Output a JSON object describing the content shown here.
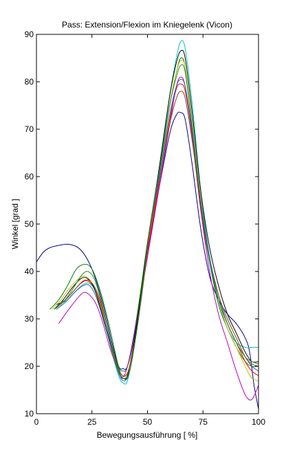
{
  "chart_data": {
    "type": "line",
    "title": "Pass: Extension/Flexion im Kniegelenk (Vicon)",
    "xlabel": "Bewegungsausführung [ %]",
    "ylabel": "Winkel [grad ]",
    "xlim": [
      0,
      100
    ],
    "ylim": [
      10,
      90
    ],
    "xticks": [
      "0",
      "25",
      "50",
      "75",
      "100"
    ],
    "yticks": [
      "10",
      "20",
      "30",
      "40",
      "50",
      "60",
      "70",
      "80",
      "90"
    ],
    "grid": false,
    "legend": "none",
    "series": [
      {
        "color": "#00008b",
        "points": [
          [
            0,
            42
          ],
          [
            3,
            44
          ],
          [
            6,
            45
          ],
          [
            10,
            45.5
          ],
          [
            15,
            45.7
          ],
          [
            20,
            44.5
          ],
          [
            25,
            40.5
          ],
          [
            30,
            33
          ],
          [
            34,
            25
          ],
          [
            37,
            20
          ],
          [
            39,
            19.5
          ],
          [
            41,
            20
          ],
          [
            44,
            26
          ],
          [
            47,
            35
          ],
          [
            50,
            44
          ],
          [
            55,
            57
          ],
          [
            60,
            69
          ],
          [
            63,
            73
          ],
          [
            65,
            73.5
          ],
          [
            67,
            72
          ],
          [
            70,
            63
          ],
          [
            74,
            49
          ],
          [
            78,
            39
          ],
          [
            82,
            34
          ],
          [
            86,
            31
          ],
          [
            90,
            29
          ],
          [
            94,
            26
          ],
          [
            96,
            23
          ],
          [
            98,
            16
          ],
          [
            100,
            11
          ]
        ]
      },
      {
        "color": "#008000",
        "points": [
          [
            6,
            32
          ],
          [
            10,
            34
          ],
          [
            14,
            37
          ],
          [
            18,
            40.5
          ],
          [
            22,
            41.5
          ],
          [
            25,
            40.5
          ],
          [
            28,
            37
          ],
          [
            31,
            32
          ],
          [
            34,
            26
          ],
          [
            37,
            20
          ],
          [
            39,
            19
          ],
          [
            41,
            20
          ],
          [
            44,
            27
          ],
          [
            47,
            36
          ],
          [
            50,
            46
          ],
          [
            55,
            60
          ],
          [
            60,
            75
          ],
          [
            63,
            82
          ],
          [
            65,
            85
          ],
          [
            67,
            83
          ],
          [
            70,
            71
          ],
          [
            74,
            54
          ],
          [
            78,
            42
          ],
          [
            82,
            33
          ],
          [
            86,
            28
          ],
          [
            90,
            24
          ],
          [
            94,
            21
          ],
          [
            97,
            20
          ],
          [
            100,
            20
          ]
        ]
      },
      {
        "color": "#ff0000",
        "points": [
          [
            9,
            33
          ],
          [
            12,
            33.5
          ],
          [
            16,
            35.5
          ],
          [
            20,
            37.5
          ],
          [
            23,
            38
          ],
          [
            26,
            36.5
          ],
          [
            29,
            33
          ],
          [
            32,
            28
          ],
          [
            35,
            22
          ],
          [
            38,
            18
          ],
          [
            39,
            17.5
          ],
          [
            41,
            18
          ],
          [
            44,
            25
          ],
          [
            47,
            34
          ],
          [
            50,
            44
          ],
          [
            55,
            58
          ],
          [
            60,
            72
          ],
          [
            63,
            78.5
          ],
          [
            65,
            79.5
          ],
          [
            67,
            78
          ],
          [
            70,
            69
          ],
          [
            74,
            53
          ],
          [
            78,
            42
          ],
          [
            82,
            34
          ],
          [
            86,
            29
          ],
          [
            90,
            25
          ],
          [
            94,
            21
          ],
          [
            97,
            19
          ],
          [
            100,
            18
          ]
        ]
      },
      {
        "color": "#00bfbf",
        "points": [
          [
            10,
            33
          ],
          [
            14,
            34
          ],
          [
            18,
            36
          ],
          [
            22,
            37.5
          ],
          [
            25,
            37
          ],
          [
            28,
            34
          ],
          [
            31,
            29
          ],
          [
            34,
            23
          ],
          [
            37,
            18
          ],
          [
            39,
            16.5
          ],
          [
            41,
            17
          ],
          [
            44,
            24
          ],
          [
            47,
            34
          ],
          [
            50,
            45
          ],
          [
            55,
            60
          ],
          [
            60,
            77
          ],
          [
            63,
            85
          ],
          [
            65,
            88.5
          ],
          [
            67,
            87
          ],
          [
            70,
            76
          ],
          [
            74,
            57
          ],
          [
            78,
            43
          ],
          [
            82,
            34
          ],
          [
            86,
            28
          ],
          [
            90,
            25
          ],
          [
            94,
            24
          ],
          [
            97,
            24
          ],
          [
            100,
            24
          ]
        ]
      },
      {
        "color": "#bf00bf",
        "points": [
          [
            10,
            29
          ],
          [
            13,
            31
          ],
          [
            17,
            33.5
          ],
          [
            21,
            35.5
          ],
          [
            24,
            35
          ],
          [
            27,
            33
          ],
          [
            30,
            29
          ],
          [
            33,
            24
          ],
          [
            36,
            20
          ],
          [
            38,
            18
          ],
          [
            40,
            18.5
          ],
          [
            43,
            24
          ],
          [
            46,
            32
          ],
          [
            50,
            43
          ],
          [
            55,
            57
          ],
          [
            60,
            71
          ],
          [
            63,
            79
          ],
          [
            65,
            81
          ],
          [
            67,
            79
          ],
          [
            70,
            69
          ],
          [
            74,
            53
          ],
          [
            78,
            40
          ],
          [
            82,
            31
          ],
          [
            86,
            25
          ],
          [
            90,
            19
          ],
          [
            94,
            14
          ],
          [
            97,
            13
          ],
          [
            100,
            16
          ]
        ]
      },
      {
        "color": "#bfbf00",
        "points": [
          [
            7,
            32
          ],
          [
            11,
            34
          ],
          [
            15,
            36.5
          ],
          [
            19,
            38.5
          ],
          [
            22,
            39
          ],
          [
            25,
            37.5
          ],
          [
            28,
            34
          ],
          [
            31,
            29
          ],
          [
            34,
            23
          ],
          [
            37,
            19
          ],
          [
            39,
            18
          ],
          [
            41,
            18.5
          ],
          [
            44,
            25
          ],
          [
            47,
            34
          ],
          [
            50,
            45
          ],
          [
            55,
            59
          ],
          [
            60,
            75
          ],
          [
            63,
            82
          ],
          [
            65,
            84.5
          ],
          [
            67,
            83
          ],
          [
            70,
            72
          ],
          [
            74,
            55
          ],
          [
            78,
            42
          ],
          [
            82,
            34
          ],
          [
            86,
            28
          ],
          [
            90,
            24
          ],
          [
            94,
            20
          ],
          [
            97,
            17.5
          ],
          [
            100,
            17
          ]
        ]
      },
      {
        "color": "#000000",
        "points": [
          [
            8,
            32
          ],
          [
            12,
            34
          ],
          [
            16,
            36.5
          ],
          [
            20,
            38.5
          ],
          [
            23,
            38.5
          ],
          [
            26,
            36.5
          ],
          [
            29,
            32
          ],
          [
            32,
            27
          ],
          [
            35,
            22
          ],
          [
            38,
            18
          ],
          [
            39,
            17.5
          ],
          [
            41,
            18
          ],
          [
            44,
            25
          ],
          [
            47,
            35
          ],
          [
            50,
            46
          ],
          [
            55,
            61
          ],
          [
            60,
            77
          ],
          [
            63,
            84
          ],
          [
            65,
            86.5
          ],
          [
            67,
            85
          ],
          [
            70,
            74
          ],
          [
            74,
            57
          ],
          [
            78,
            45
          ],
          [
            82,
            37
          ],
          [
            86,
            31
          ],
          [
            90,
            27
          ],
          [
            94,
            23
          ],
          [
            97,
            21
          ],
          [
            100,
            21
          ]
        ]
      },
      {
        "color": "#1f5fbf",
        "points": [
          [
            9,
            32
          ],
          [
            13,
            33.5
          ],
          [
            17,
            35.5
          ],
          [
            21,
            37
          ],
          [
            24,
            37
          ],
          [
            27,
            34.5
          ],
          [
            30,
            30
          ],
          [
            33,
            25
          ],
          [
            36,
            20
          ],
          [
            38,
            17.5
          ],
          [
            40,
            17
          ],
          [
            42,
            19
          ],
          [
            45,
            27
          ],
          [
            48,
            37
          ],
          [
            51,
            48
          ],
          [
            56,
            62
          ],
          [
            60,
            73
          ],
          [
            63,
            79
          ],
          [
            65,
            80.5
          ],
          [
            67,
            79
          ],
          [
            70,
            70
          ],
          [
            74,
            55
          ],
          [
            78,
            43
          ],
          [
            82,
            35
          ],
          [
            86,
            29
          ],
          [
            90,
            25
          ],
          [
            94,
            22
          ],
          [
            97,
            20
          ],
          [
            100,
            19
          ]
        ]
      },
      {
        "color": "#8b4513",
        "points": [
          [
            9,
            33
          ],
          [
            13,
            34
          ],
          [
            17,
            36
          ],
          [
            21,
            38
          ],
          [
            24,
            38
          ],
          [
            27,
            36
          ],
          [
            30,
            32
          ],
          [
            33,
            26
          ],
          [
            36,
            21
          ],
          [
            38,
            18.5
          ],
          [
            40,
            18
          ],
          [
            42,
            20
          ],
          [
            45,
            27
          ],
          [
            48,
            37
          ],
          [
            51,
            48
          ],
          [
            56,
            61
          ],
          [
            60,
            71
          ],
          [
            63,
            76.5
          ],
          [
            65,
            78
          ],
          [
            67,
            76.5
          ],
          [
            70,
            68
          ],
          [
            74,
            54
          ],
          [
            78,
            42
          ],
          [
            82,
            35
          ],
          [
            86,
            30
          ],
          [
            90,
            26
          ],
          [
            94,
            22
          ],
          [
            97,
            20.5
          ],
          [
            100,
            20
          ]
        ]
      },
      {
        "color": "#228b22",
        "points": [
          [
            8,
            32
          ],
          [
            12,
            33.5
          ],
          [
            16,
            36
          ],
          [
            20,
            39
          ],
          [
            23,
            40
          ],
          [
            26,
            38.5
          ],
          [
            29,
            34
          ],
          [
            32,
            28
          ],
          [
            35,
            22
          ],
          [
            38,
            18
          ],
          [
            40,
            17.5
          ],
          [
            42,
            19
          ],
          [
            45,
            27
          ],
          [
            48,
            38
          ],
          [
            51,
            49
          ],
          [
            56,
            63
          ],
          [
            60,
            75
          ],
          [
            63,
            81
          ],
          [
            65,
            83.5
          ],
          [
            67,
            82
          ],
          [
            70,
            71
          ],
          [
            74,
            55
          ],
          [
            78,
            42
          ],
          [
            82,
            34
          ],
          [
            86,
            29
          ],
          [
            90,
            25
          ],
          [
            94,
            22
          ],
          [
            97,
            21
          ],
          [
            100,
            20.5
          ]
        ]
      }
    ]
  }
}
